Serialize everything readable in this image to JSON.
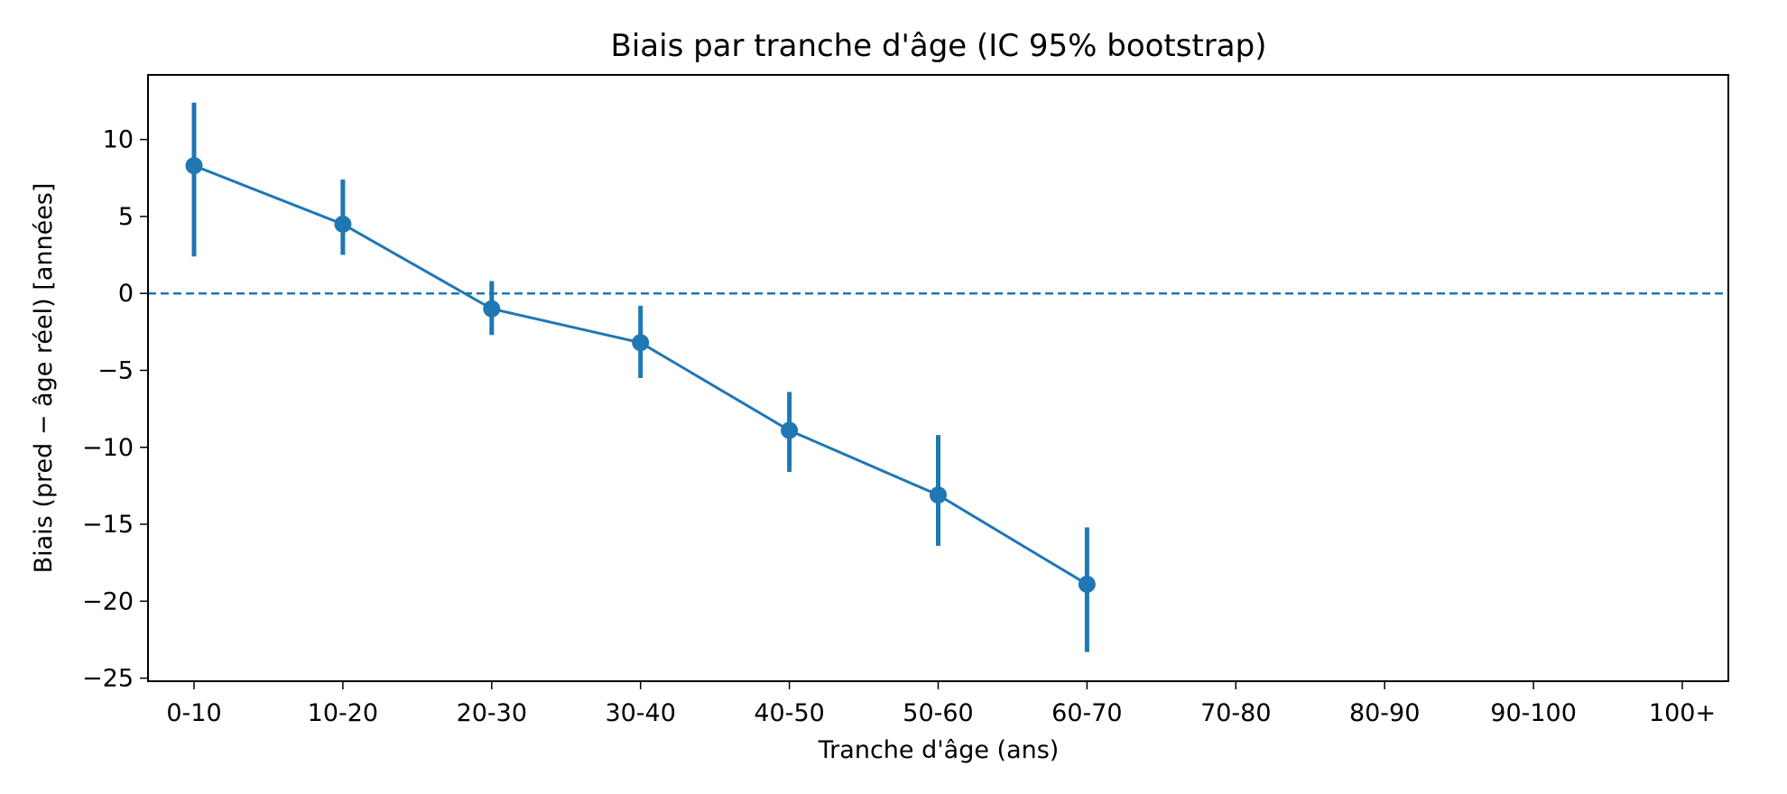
{
  "chart_data": {
    "type": "line",
    "title": "Biais par tranche d'âge (IC 95% bootstrap)",
    "xlabel": "Tranche d'âge (ans)",
    "ylabel": "Biais (pred − âge réel) [années]",
    "categories": [
      "0-10",
      "10-20",
      "20-30",
      "30-40",
      "40-50",
      "50-60",
      "60-70",
      "70-80",
      "80-90",
      "90-100",
      "100+"
    ],
    "series": [
      {
        "values": [
          8.3,
          4.5,
          -1.0,
          -3.2,
          -8.9,
          -13.1,
          -18.9,
          null,
          null,
          null,
          null
        ],
        "ci_low": [
          2.4,
          2.5,
          -2.7,
          -5.5,
          -11.6,
          -16.4,
          -23.3,
          null,
          null,
          null,
          null
        ],
        "ci_high": [
          12.4,
          7.4,
          0.8,
          -0.8,
          -6.4,
          -9.2,
          -15.2,
          null,
          null,
          null,
          null
        ],
        "color": "#1f77b4"
      }
    ],
    "yticks": [
      10,
      5,
      0,
      -5,
      -10,
      -15,
      -20,
      -25
    ],
    "ytick_labels": [
      "10",
      "5",
      "0",
      "−5",
      "−10",
      "−15",
      "−20",
      "−25"
    ],
    "ylim": [
      -25.2,
      14.2
    ],
    "reference_line": {
      "y": 0,
      "style": "dashed",
      "color": "#1f77b4"
    },
    "grid": false,
    "legend": false
  }
}
